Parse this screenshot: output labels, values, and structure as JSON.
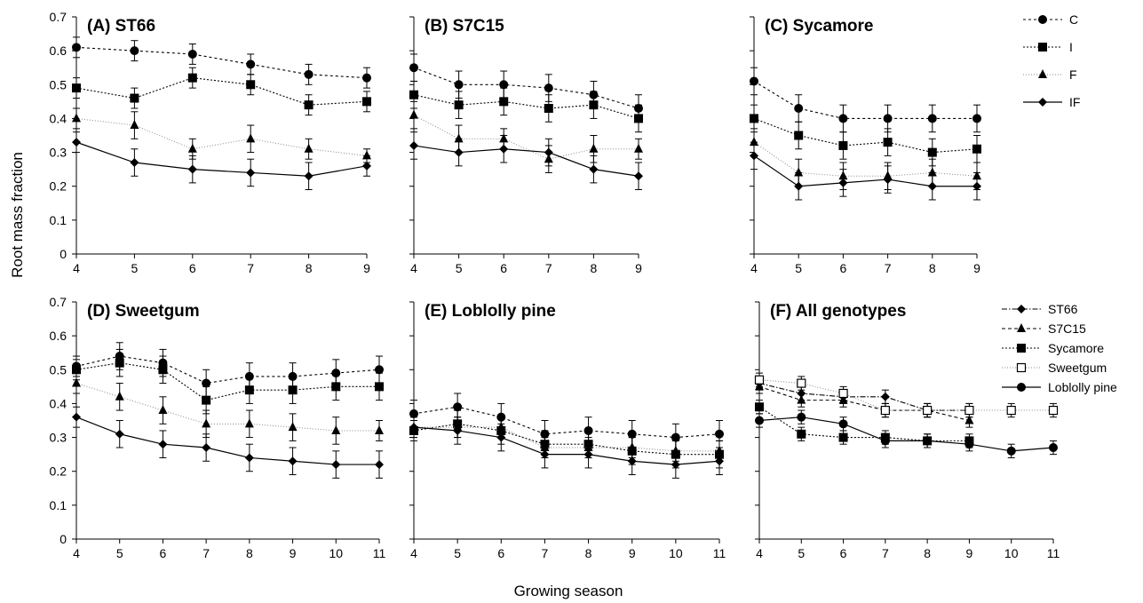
{
  "figure": {
    "ylabel": "Root mass fraction",
    "xlabel": "Growing season"
  },
  "legends": [
    {
      "entries": [
        {
          "label": "C",
          "marker": "circle",
          "dash": "3,3",
          "color": "#000000",
          "width": 1.1
        },
        {
          "label": "I",
          "marker": "square",
          "dash": "2,2",
          "color": "#000000",
          "width": 1.1
        },
        {
          "label": "F",
          "marker": "triangle",
          "dash": "1,2",
          "color": "#888888",
          "width": 1.0
        },
        {
          "label": "IF",
          "marker": "diamond",
          "dash": "",
          "color": "#000000",
          "width": 1.2
        }
      ]
    },
    {
      "entries": [
        {
          "label": "ST66",
          "marker": "diamond",
          "dash": "6,2,1.5,2",
          "color": "#000000",
          "width": 1.1
        },
        {
          "label": "S7C15",
          "marker": "triangle",
          "dash": "4,3",
          "color": "#000000",
          "width": 1.1
        },
        {
          "label": "Sycamore",
          "marker": "square",
          "dash": "2,2",
          "color": "#000000",
          "width": 1.1
        },
        {
          "label": "Sweetgum",
          "marker": "open-square",
          "dash": "1,2",
          "color": "#888888",
          "width": 1.0
        },
        {
          "label": "Loblolly pine",
          "marker": "circle",
          "dash": "",
          "color": "#000000",
          "width": 1.2
        }
      ]
    }
  ],
  "chart_data": [
    {
      "type": "line",
      "title": "(A) ST66",
      "x": [
        4,
        5,
        6,
        7,
        8,
        9
      ],
      "xlim": [
        4,
        9
      ],
      "ylim": [
        0,
        0.7
      ],
      "yticks": [
        0,
        0.1,
        0.2,
        0.3,
        0.4,
        0.5,
        0.6,
        0.7
      ],
      "series": [
        {
          "name": "C",
          "values": [
            0.61,
            0.6,
            0.59,
            0.56,
            0.53,
            0.52
          ],
          "err": [
            0.03,
            0.03,
            0.03,
            0.03,
            0.03,
            0.03
          ]
        },
        {
          "name": "I",
          "values": [
            0.49,
            0.46,
            0.52,
            0.5,
            0.44,
            0.45
          ],
          "err": [
            0.03,
            0.03,
            0.03,
            0.03,
            0.03,
            0.03
          ]
        },
        {
          "name": "F",
          "values": [
            0.4,
            0.38,
            0.31,
            0.34,
            0.31,
            0.29
          ],
          "err": [
            0.03,
            0.04,
            0.03,
            0.04,
            0.03,
            0.02
          ]
        },
        {
          "name": "IF",
          "values": [
            0.33,
            0.27,
            0.25,
            0.24,
            0.23,
            0.26
          ],
          "err": [
            0.03,
            0.04,
            0.04,
            0.04,
            0.04,
            0.03
          ]
        }
      ]
    },
    {
      "type": "line",
      "title": "(B) S7C15",
      "x": [
        4,
        5,
        6,
        7,
        8,
        9
      ],
      "xlim": [
        4,
        9
      ],
      "ylim": [
        0,
        0.7
      ],
      "series": [
        {
          "name": "C",
          "values": [
            0.55,
            0.5,
            0.5,
            0.49,
            0.47,
            0.43
          ],
          "err": [
            0.04,
            0.04,
            0.04,
            0.04,
            0.04,
            0.04
          ]
        },
        {
          "name": "I",
          "values": [
            0.47,
            0.44,
            0.45,
            0.43,
            0.44,
            0.4
          ],
          "err": [
            0.04,
            0.04,
            0.04,
            0.04,
            0.04,
            0.04
          ]
        },
        {
          "name": "F",
          "values": [
            0.41,
            0.34,
            0.34,
            0.28,
            0.31,
            0.31
          ],
          "err": [
            0.04,
            0.04,
            0.03,
            0.04,
            0.04,
            0.03
          ]
        },
        {
          "name": "IF",
          "values": [
            0.32,
            0.3,
            0.31,
            0.3,
            0.25,
            0.23
          ],
          "err": [
            0.04,
            0.04,
            0.04,
            0.04,
            0.04,
            0.04
          ]
        }
      ]
    },
    {
      "type": "line",
      "title": "(C) Sycamore",
      "x": [
        4,
        5,
        6,
        7,
        8,
        9
      ],
      "xlim": [
        4,
        9
      ],
      "ylim": [
        0,
        0.7
      ],
      "series": [
        {
          "name": "C",
          "values": [
            0.51,
            0.43,
            0.4,
            0.4,
            0.4,
            0.4
          ],
          "err": [
            0.04,
            0.04,
            0.04,
            0.04,
            0.04,
            0.04
          ]
        },
        {
          "name": "I",
          "values": [
            0.4,
            0.35,
            0.32,
            0.33,
            0.3,
            0.31
          ],
          "err": [
            0.04,
            0.04,
            0.04,
            0.04,
            0.04,
            0.04
          ]
        },
        {
          "name": "F",
          "values": [
            0.33,
            0.24,
            0.23,
            0.23,
            0.24,
            0.23
          ],
          "err": [
            0.04,
            0.04,
            0.04,
            0.04,
            0.04,
            0.04
          ]
        },
        {
          "name": "IF",
          "values": [
            0.29,
            0.2,
            0.21,
            0.22,
            0.2,
            0.2
          ],
          "err": [
            0.04,
            0.04,
            0.04,
            0.04,
            0.04,
            0.04
          ]
        }
      ]
    },
    {
      "type": "line",
      "title": "(D) Sweetgum",
      "x": [
        4,
        5,
        6,
        7,
        8,
        9,
        10,
        11
      ],
      "xlim": [
        4,
        11
      ],
      "ylim": [
        0,
        0.7
      ],
      "yticks": [
        0,
        0.1,
        0.2,
        0.3,
        0.4,
        0.5,
        0.6,
        0.7
      ],
      "series": [
        {
          "name": "C",
          "values": [
            0.51,
            0.54,
            0.52,
            0.46,
            0.48,
            0.48,
            0.49,
            0.5
          ],
          "err": [
            0.03,
            0.04,
            0.04,
            0.04,
            0.04,
            0.04,
            0.04,
            0.04
          ]
        },
        {
          "name": "I",
          "values": [
            0.5,
            0.52,
            0.5,
            0.41,
            0.44,
            0.44,
            0.45,
            0.45
          ],
          "err": [
            0.03,
            0.04,
            0.04,
            0.04,
            0.04,
            0.04,
            0.04,
            0.04
          ]
        },
        {
          "name": "F",
          "values": [
            0.46,
            0.42,
            0.38,
            0.34,
            0.34,
            0.33,
            0.32,
            0.32
          ],
          "err": [
            0.03,
            0.04,
            0.04,
            0.04,
            0.04,
            0.04,
            0.04,
            0.03
          ]
        },
        {
          "name": "IF",
          "values": [
            0.36,
            0.31,
            0.28,
            0.27,
            0.24,
            0.23,
            0.22,
            0.22
          ],
          "err": [
            0.03,
            0.04,
            0.04,
            0.04,
            0.04,
            0.04,
            0.04,
            0.04
          ]
        }
      ]
    },
    {
      "type": "line",
      "title": "(E) Loblolly pine",
      "x": [
        4,
        5,
        6,
        7,
        8,
        9,
        10,
        11
      ],
      "xlim": [
        4,
        11
      ],
      "ylim": [
        0,
        0.7
      ],
      "series": [
        {
          "name": "C",
          "values": [
            0.37,
            0.39,
            0.36,
            0.31,
            0.32,
            0.31,
            0.3,
            0.31
          ],
          "err": [
            0.04,
            0.04,
            0.04,
            0.04,
            0.04,
            0.04,
            0.04,
            0.04
          ]
        },
        {
          "name": "I",
          "values": [
            0.32,
            0.34,
            0.32,
            0.28,
            0.28,
            0.26,
            0.25,
            0.25
          ],
          "err": [
            0.03,
            0.04,
            0.04,
            0.04,
            0.04,
            0.04,
            0.04,
            0.04
          ]
        },
        {
          "name": "F",
          "values": [
            0.33,
            0.33,
            0.33,
            0.27,
            0.27,
            0.27,
            0.26,
            0.26
          ],
          "err": [
            0.03,
            0.03,
            0.03,
            0.03,
            0.03,
            0.03,
            0.03,
            0.03
          ]
        },
        {
          "name": "IF",
          "values": [
            0.33,
            0.32,
            0.3,
            0.25,
            0.25,
            0.23,
            0.22,
            0.23
          ],
          "err": [
            0.03,
            0.04,
            0.04,
            0.04,
            0.04,
            0.04,
            0.04,
            0.04
          ]
        }
      ]
    },
    {
      "type": "line",
      "title": "(F) All genotypes",
      "x": [
        4,
        5,
        6,
        7,
        8,
        9,
        10,
        11
      ],
      "xlim": [
        4,
        11
      ],
      "ylim": [
        0,
        0.7
      ],
      "series": [
        {
          "name": "ST66",
          "x": [
            4,
            5,
            6,
            7,
            8,
            9
          ],
          "values": [
            0.46,
            0.43,
            0.42,
            0.42,
            0.38,
            0.38
          ],
          "err": [
            0.02,
            0.02,
            0.02,
            0.02,
            0.02,
            0.02
          ]
        },
        {
          "name": "S7C15",
          "x": [
            4,
            5,
            6,
            7,
            8,
            9
          ],
          "values": [
            0.45,
            0.41,
            0.41,
            0.38,
            0.38,
            0.35
          ],
          "err": [
            0.02,
            0.02,
            0.02,
            0.02,
            0.02,
            0.02
          ]
        },
        {
          "name": "Sycamore",
          "x": [
            4,
            5,
            6,
            7,
            8,
            9
          ],
          "values": [
            0.39,
            0.31,
            0.3,
            0.3,
            0.29,
            0.29
          ],
          "err": [
            0.02,
            0.02,
            0.02,
            0.02,
            0.02,
            0.02
          ]
        },
        {
          "name": "Sweetgum",
          "x": [
            4,
            5,
            6,
            7,
            8,
            9,
            10,
            11
          ],
          "values": [
            0.47,
            0.46,
            0.43,
            0.38,
            0.38,
            0.38,
            0.38,
            0.38
          ],
          "err": [
            0.02,
            0.02,
            0.02,
            0.02,
            0.02,
            0.02,
            0.02,
            0.02
          ]
        },
        {
          "name": "Loblolly pine",
          "x": [
            4,
            5,
            6,
            7,
            8,
            9,
            10,
            11
          ],
          "values": [
            0.35,
            0.36,
            0.34,
            0.29,
            0.29,
            0.28,
            0.26,
            0.27
          ],
          "err": [
            0.02,
            0.02,
            0.02,
            0.02,
            0.02,
            0.02,
            0.02,
            0.02
          ]
        }
      ]
    }
  ]
}
